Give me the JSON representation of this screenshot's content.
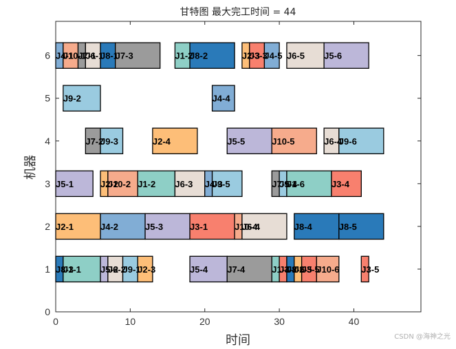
{
  "chart_data": {
    "type": "bar",
    "subtype": "gantt",
    "title": "甘特图 最大完工时间 = 44",
    "xlabel": "时间",
    "ylabel": "机器",
    "xlim": [
      0,
      49
    ],
    "ylim": [
      0,
      6.8
    ],
    "xticks": [
      0,
      10,
      20,
      30,
      40
    ],
    "yticks": [
      0,
      1,
      2,
      3,
      4,
      5,
      6
    ],
    "grid": false,
    "job_colors": {
      "J1": "#8ecfc6",
      "J2": "#fdbe78",
      "J3": "#f8806e",
      "J4": "#81add5",
      "J5": "#bcb7d9",
      "J6": "#e7ddd5",
      "J7": "#9b9b9b",
      "J8": "#2a7ab9",
      "J9": "#9acbe0",
      "J10": "#f6ab8c"
    },
    "tasks": [
      {
        "machine": 6,
        "start": 0,
        "end": 1,
        "label": "J4-1",
        "job": "J4"
      },
      {
        "machine": 6,
        "start": 1,
        "end": 3,
        "label": "J10-1",
        "job": "J10"
      },
      {
        "machine": 6,
        "start": 3,
        "end": 4,
        "label": "J7-1",
        "job": "J7"
      },
      {
        "machine": 6,
        "start": 4,
        "end": 6,
        "label": "J6-1",
        "job": "J6"
      },
      {
        "machine": 6,
        "start": 6,
        "end": 8,
        "label": "J8-1",
        "job": "J8"
      },
      {
        "machine": 6,
        "start": 8,
        "end": 14,
        "label": "J7-3",
        "job": "J7"
      },
      {
        "machine": 6,
        "start": 16,
        "end": 18,
        "label": "J1-2",
        "job": "J1"
      },
      {
        "machine": 6,
        "start": 18,
        "end": 24,
        "label": "J8-2",
        "job": "J8"
      },
      {
        "machine": 6,
        "start": 25,
        "end": 26,
        "label": "J2-3",
        "job": "J2"
      },
      {
        "machine": 6,
        "start": 26,
        "end": 28,
        "label": "J3-3",
        "job": "J3"
      },
      {
        "machine": 6,
        "start": 28,
        "end": 30,
        "label": "J4-5",
        "job": "J4"
      },
      {
        "machine": 6,
        "start": 31,
        "end": 36,
        "label": "J6-5",
        "job": "J6"
      },
      {
        "machine": 6,
        "start": 36,
        "end": 42,
        "label": "J5-6",
        "job": "J5"
      },
      {
        "machine": 5,
        "start": 1,
        "end": 6,
        "label": "J9-2",
        "job": "J9"
      },
      {
        "machine": 5,
        "start": 21,
        "end": 24,
        "label": "J4-4",
        "job": "J4"
      },
      {
        "machine": 4,
        "start": 4,
        "end": 6,
        "label": "J7-2",
        "job": "J7"
      },
      {
        "machine": 4,
        "start": 6,
        "end": 9,
        "label": "J9-3",
        "job": "J9"
      },
      {
        "machine": 4,
        "start": 13,
        "end": 19,
        "label": "J2-4",
        "job": "J2"
      },
      {
        "machine": 4,
        "start": 23,
        "end": 29,
        "label": "J5-5",
        "job": "J5"
      },
      {
        "machine": 4,
        "start": 29,
        "end": 35,
        "label": "J10-5",
        "job": "J10"
      },
      {
        "machine": 4,
        "start": 36,
        "end": 38,
        "label": "J6-4",
        "job": "J6"
      },
      {
        "machine": 4,
        "start": 38,
        "end": 44,
        "label": "J9-6",
        "job": "J9"
      },
      {
        "machine": 3,
        "start": 0,
        "end": 5,
        "label": "J5-1",
        "job": "J5"
      },
      {
        "machine": 3,
        "start": 6,
        "end": 7,
        "label": "J2-2",
        "job": "J2"
      },
      {
        "machine": 3,
        "start": 7,
        "end": 11,
        "label": "J10-2",
        "job": "J10"
      },
      {
        "machine": 3,
        "start": 11,
        "end": 16,
        "label": "J1-2",
        "job": "J1"
      },
      {
        "machine": 3,
        "start": 16,
        "end": 20,
        "label": "J6-3",
        "job": "J6"
      },
      {
        "machine": 3,
        "start": 20,
        "end": 21,
        "label": "J4-3",
        "job": "J4"
      },
      {
        "machine": 3,
        "start": 21,
        "end": 25,
        "label": "J9-5",
        "job": "J9"
      },
      {
        "machine": 3,
        "start": 29,
        "end": 30,
        "label": "J7-5",
        "job": "J7"
      },
      {
        "machine": 3,
        "start": 30,
        "end": 31,
        "label": "J9-4",
        "job": "J9"
      },
      {
        "machine": 3,
        "start": 31,
        "end": 37,
        "label": "J1-6",
        "job": "J1"
      },
      {
        "machine": 3,
        "start": 37,
        "end": 41,
        "label": "J3-4",
        "job": "J3"
      },
      {
        "machine": 2,
        "start": 0,
        "end": 6,
        "label": "J2-1",
        "job": "J2"
      },
      {
        "machine": 2,
        "start": 6,
        "end": 12,
        "label": "J4-2",
        "job": "J4"
      },
      {
        "machine": 2,
        "start": 12,
        "end": 18,
        "label": "J5-3",
        "job": "J5"
      },
      {
        "machine": 2,
        "start": 18,
        "end": 24,
        "label": "J3-1",
        "job": "J3"
      },
      {
        "machine": 2,
        "start": 24,
        "end": 25,
        "label": "J10-4",
        "job": "J10"
      },
      {
        "machine": 2,
        "start": 25,
        "end": 31,
        "label": "J6-4",
        "job": "J6"
      },
      {
        "machine": 2,
        "start": 32,
        "end": 38,
        "label": "J8-4",
        "job": "J8"
      },
      {
        "machine": 2,
        "start": 38,
        "end": 44,
        "label": "J8-5",
        "job": "J8"
      },
      {
        "machine": 1,
        "start": 0,
        "end": 1,
        "label": "J8-3",
        "job": "J8"
      },
      {
        "machine": 1,
        "start": 1,
        "end": 6,
        "label": "J1-1",
        "job": "J1"
      },
      {
        "machine": 1,
        "start": 6,
        "end": 7,
        "label": "J5-2",
        "job": "J5"
      },
      {
        "machine": 1,
        "start": 7,
        "end": 9,
        "label": "J6-2",
        "job": "J6"
      },
      {
        "machine": 1,
        "start": 9,
        "end": 11,
        "label": "J9-1",
        "job": "J9"
      },
      {
        "machine": 1,
        "start": 11,
        "end": 13,
        "label": "J2-3",
        "job": "J2"
      },
      {
        "machine": 1,
        "start": 18,
        "end": 23,
        "label": "J5-4",
        "job": "J5"
      },
      {
        "machine": 1,
        "start": 23,
        "end": 29,
        "label": "J7-4",
        "job": "J7"
      },
      {
        "machine": 1,
        "start": 29,
        "end": 30,
        "label": "J1-4",
        "job": "J1"
      },
      {
        "machine": 1,
        "start": 30,
        "end": 31,
        "label": "J3-2",
        "job": "J3"
      },
      {
        "machine": 1,
        "start": 31,
        "end": 32,
        "label": "J8-6",
        "job": "J8"
      },
      {
        "machine": 1,
        "start": 32,
        "end": 33,
        "label": "J2-5",
        "job": "J2"
      },
      {
        "machine": 1,
        "start": 33,
        "end": 35,
        "label": "J3-5",
        "job": "J3"
      },
      {
        "machine": 1,
        "start": 35,
        "end": 38,
        "label": "J10-6",
        "job": "J10"
      },
      {
        "machine": 1,
        "start": 41,
        "end": 42,
        "label": "J3-5",
        "job": "J3"
      }
    ]
  },
  "watermark": "CSDN @海神之光"
}
